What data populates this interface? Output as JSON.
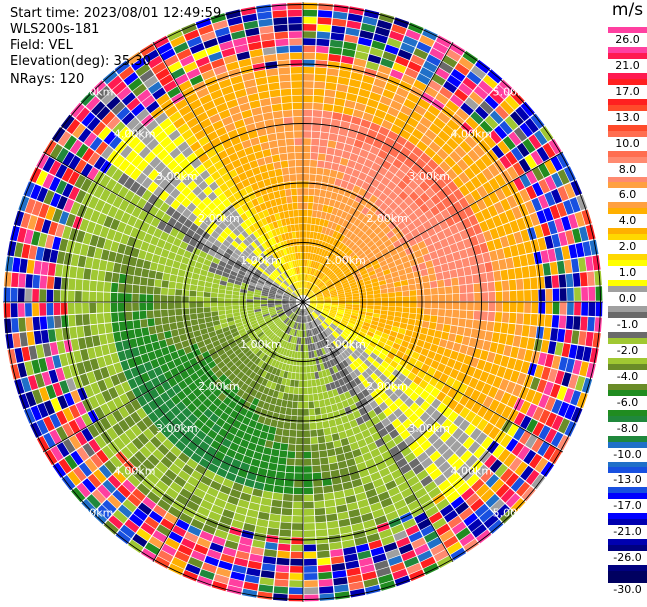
{
  "header": {
    "start_time": "Start time: 2023/08/01 12:49:59",
    "instrument": "WLS200s-181",
    "field": "Field: VEL",
    "elevation": "Elevation(deg): 35.30",
    "nrays": "NRays: 120"
  },
  "colorbar": {
    "unit": "m/s",
    "ticks": [
      "26.0",
      "21.0",
      "17.0",
      "13.0",
      "10.0",
      "8.0",
      "6.0",
      "4.0",
      "2.0",
      "1.0",
      "0.0",
      "-1.0",
      "-2.0",
      "-4.0",
      "-6.0",
      "-8.0",
      "-10.0",
      "-13.0",
      "-17.0",
      "-21.0",
      "-26.0",
      "-30.0"
    ],
    "colors": [
      "#ff3fa0",
      "#ff1a50",
      "#ff2020",
      "#ff4a2a",
      "#ff6e50",
      "#ff8a70",
      "#ffa040",
      "#ffb000",
      "#ffd800",
      "#ffff00",
      "#a0a0a0",
      "#6a6a6a",
      "#a0c832",
      "#6a8c28",
      "#208c20",
      "#20883c",
      "#2070c8",
      "#1850e0",
      "#0000ff",
      "#0000b0",
      "#000080",
      "#000060"
    ]
  },
  "chart_data": {
    "type": "heatmap",
    "subtype": "radar PPI (plan position indicator)",
    "field": "VEL",
    "units": "m/s",
    "elevation_deg": 35.3,
    "nrays": 120,
    "range_rings_km": [
      1.0,
      2.0,
      3.0,
      4.0,
      5.0
    ],
    "range_labels": [
      "1.00km",
      "2.00km",
      "3.00km",
      "4.00km",
      "5.00km"
    ],
    "colorbar_range": [
      -30.0,
      26.0
    ],
    "pattern": "positive velocities (orange/yellow) to the north-east and east, negative velocities (green/blue) to the south-west, noisy random values beyond about 4.2 km"
  }
}
